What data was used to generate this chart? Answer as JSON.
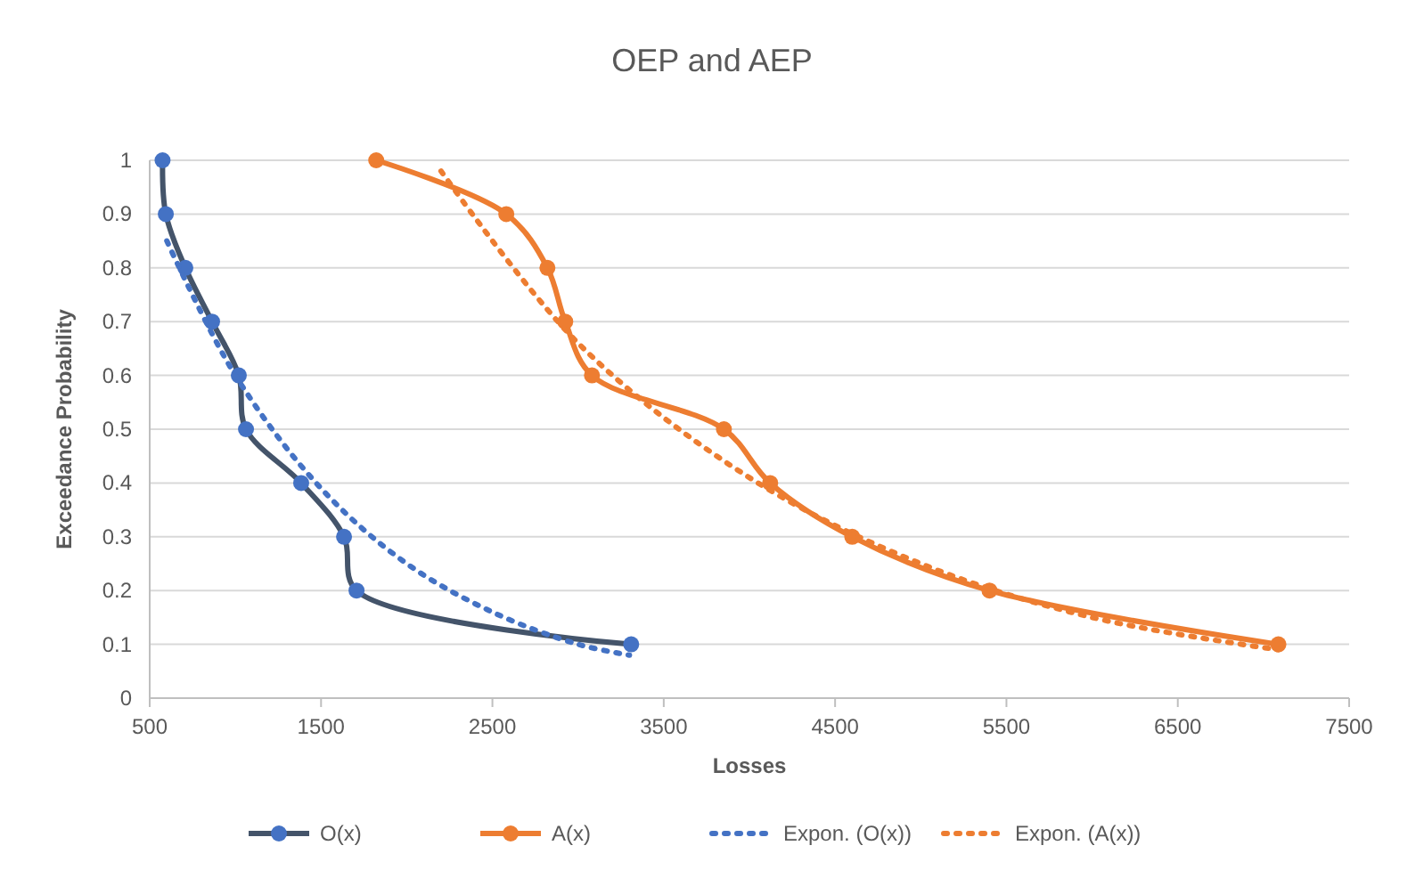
{
  "chart_data": {
    "type": "line",
    "title": "OEP and AEP",
    "xlabel": "Losses",
    "ylabel": "Exceedance Probability",
    "xlim": [
      500,
      7500
    ],
    "xticks": [
      500,
      1500,
      2500,
      3500,
      4500,
      5500,
      6500,
      7500
    ],
    "ylim": [
      0,
      1
    ],
    "yticks": [
      0,
      0.1,
      0.2,
      0.3,
      0.4,
      0.5,
      0.6,
      0.7,
      0.8,
      0.9,
      1
    ],
    "grid": "y",
    "legend": "bottom",
    "series": [
      {
        "name": "O(x)",
        "color": "#44546a",
        "marker": "circle",
        "line_style": "solid",
        "x": [
          575,
          594,
          708,
          864,
          1020,
          1062,
          1384,
          1634,
          1707,
          3310
        ],
        "values": [
          1,
          0.9,
          0.8,
          0.7,
          0.6,
          0.5,
          0.4,
          0.3,
          0.2,
          0.1
        ]
      },
      {
        "name": "A(x)",
        "color": "#ed7d31",
        "marker": "circle",
        "line_style": "solid",
        "x": [
          1822,
          2581,
          2821,
          2925,
          3081,
          3851,
          4121,
          4600,
          5401,
          7087
        ],
        "values": [
          1,
          0.9,
          0.8,
          0.7,
          0.6,
          0.5,
          0.4,
          0.3,
          0.2,
          0.1
        ]
      },
      {
        "name": "Expon. (O(x))",
        "color": "#4472c4",
        "marker": "none",
        "line_style": "dotted",
        "x": [
          600,
          1000,
          1500,
          2000,
          2500,
          3000,
          3300
        ],
        "values": [
          0.85,
          0.6,
          0.39,
          0.25,
          0.16,
          0.1,
          0.08
        ]
      },
      {
        "name": "Expon. (A(x))",
        "color": "#ed7d31",
        "marker": "none",
        "line_style": "dotted",
        "x": [
          2200,
          3000,
          4000,
          5000,
          6000,
          7087
        ],
        "values": [
          0.98,
          0.66,
          0.41,
          0.25,
          0.15,
          0.09
        ]
      }
    ]
  }
}
